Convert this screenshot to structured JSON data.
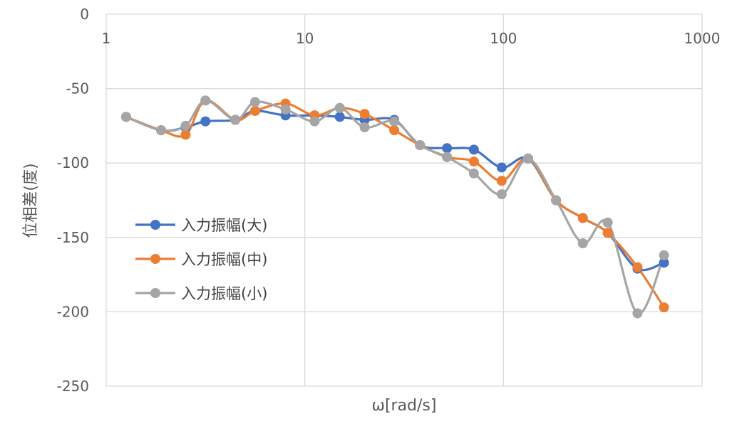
{
  "chart_data": {
    "type": "line",
    "title": "",
    "xlabel": "ω[rad/s]",
    "ylabel": "位相差(度)",
    "x_scale": "log",
    "xlim": [
      1,
      1000
    ],
    "ylim": [
      -250,
      0
    ],
    "x_ticks": [
      1,
      10,
      100,
      1000
    ],
    "x_tick_labels": [
      "1",
      "10",
      "100",
      "1000"
    ],
    "y_ticks": [
      0,
      -50,
      -100,
      -150,
      -200,
      -250
    ],
    "y_tick_labels": [
      "0",
      "-50",
      "-100",
      "-150",
      "-200",
      "-250"
    ],
    "grid": true,
    "legend_position": "left-center",
    "series": [
      {
        "name": "入力振幅(大)",
        "color": "#4472C4",
        "points": [
          [
            1.26,
            -69
          ],
          [
            1.89,
            -78
          ],
          [
            2.51,
            -76
          ],
          [
            3.16,
            -72
          ],
          [
            4.47,
            -71
          ],
          [
            5.62,
            -65
          ],
          [
            8.0,
            -68
          ],
          [
            11.2,
            -68
          ],
          [
            15.0,
            -69
          ],
          [
            20.0,
            -71
          ],
          [
            28.2,
            -71
          ],
          [
            38.0,
            -88
          ],
          [
            52.0,
            -90
          ],
          [
            71.0,
            -91
          ],
          [
            98.0,
            -103
          ],
          [
            133.0,
            -97
          ],
          [
            184.0,
            -125
          ],
          [
            251.0,
            -137
          ],
          [
            335.0,
            -147
          ],
          [
            473.0,
            -171
          ],
          [
            643.0,
            -167
          ]
        ]
      },
      {
        "name": "入力振幅(中)",
        "color": "#ED7D31",
        "points": [
          [
            1.26,
            -69
          ],
          [
            1.89,
            -78
          ],
          [
            2.51,
            -81
          ],
          [
            3.16,
            -58
          ],
          [
            4.47,
            -71
          ],
          [
            5.62,
            -65
          ],
          [
            8.0,
            -60
          ],
          [
            11.2,
            -68
          ],
          [
            15.0,
            -63
          ],
          [
            20.0,
            -67
          ],
          [
            28.2,
            -78
          ],
          [
            38.0,
            -88
          ],
          [
            52.0,
            -96
          ],
          [
            71.0,
            -99
          ],
          [
            98.0,
            -112
          ],
          [
            133.0,
            -97
          ],
          [
            184.0,
            -125
          ],
          [
            251.0,
            -137
          ],
          [
            335.0,
            -147
          ],
          [
            473.0,
            -170
          ],
          [
            643.0,
            -197
          ]
        ]
      },
      {
        "name": "入力振幅(小)",
        "color": "#A5A5A5",
        "points": [
          [
            1.26,
            -69
          ],
          [
            1.89,
            -78
          ],
          [
            2.51,
            -75
          ],
          [
            3.16,
            -58
          ],
          [
            4.47,
            -71
          ],
          [
            5.62,
            -59
          ],
          [
            8.0,
            -64
          ],
          [
            11.2,
            -72
          ],
          [
            15.0,
            -63
          ],
          [
            20.0,
            -76
          ],
          [
            28.2,
            -72
          ],
          [
            38.0,
            -88
          ],
          [
            52.0,
            -96
          ],
          [
            71.0,
            -107
          ],
          [
            98.0,
            -121
          ],
          [
            133.0,
            -97
          ],
          [
            184.0,
            -125
          ],
          [
            251.0,
            -154
          ],
          [
            335.0,
            -140
          ],
          [
            473.0,
            -201
          ],
          [
            643.0,
            -162
          ]
        ]
      }
    ]
  }
}
